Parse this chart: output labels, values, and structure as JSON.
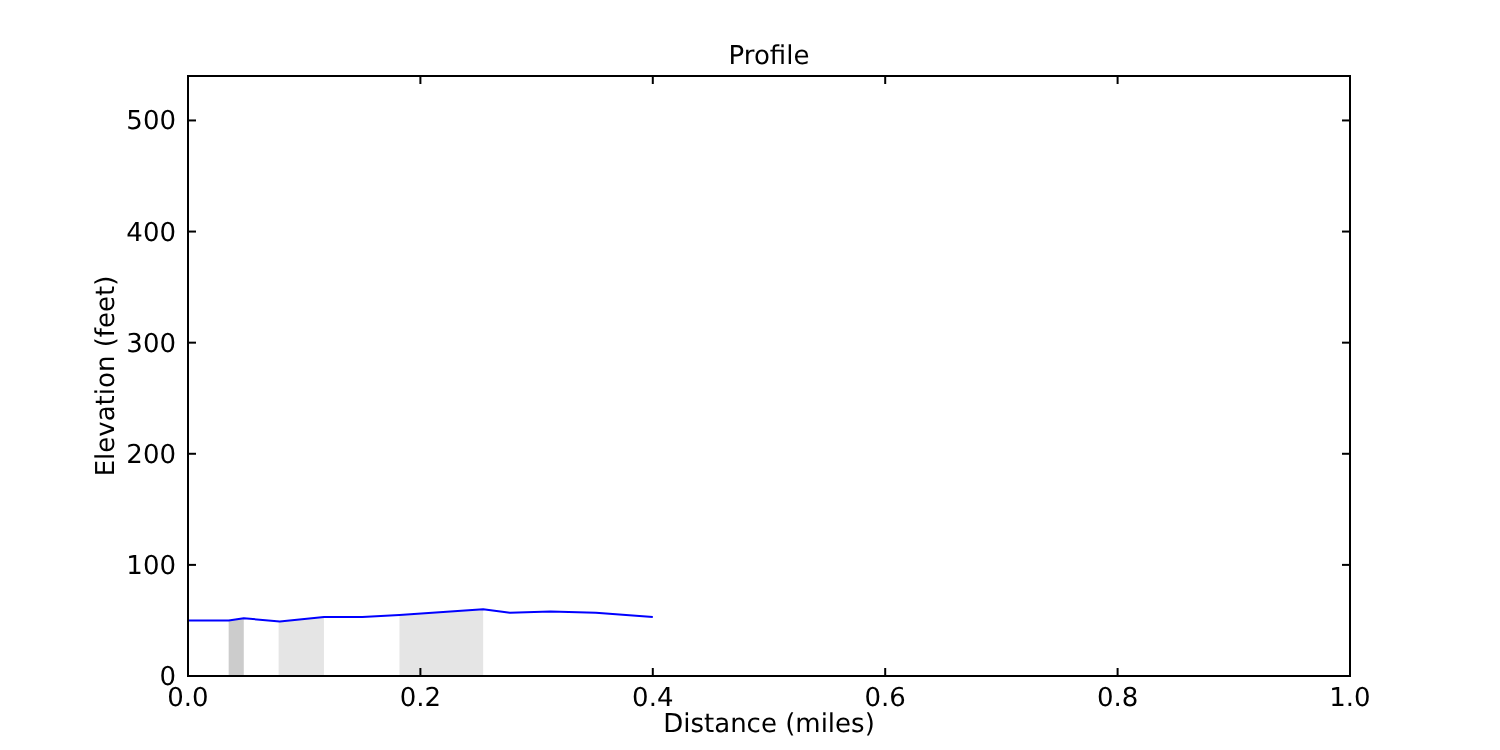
{
  "chart_data": {
    "type": "line",
    "title": "Profile",
    "xlabel": "Distance (miles)",
    "ylabel": "Elevation (feet)",
    "xlim": [
      0,
      1
    ],
    "xticks": [
      {
        "value": 0,
        "label": "0.0"
      },
      {
        "value": 0.2,
        "label": "0.2"
      },
      {
        "value": 0.4,
        "label": "0.4"
      },
      {
        "value": 0.6,
        "label": "0.6"
      },
      {
        "value": 0.8,
        "label": "0.8"
      },
      {
        "value": 1,
        "label": "1.0"
      }
    ],
    "ylim": [
      0,
      540
    ],
    "yticks": [
      0,
      100,
      200,
      300,
      400,
      500
    ],
    "series": [
      {
        "type": "area",
        "color": "#cccccc",
        "x": [
          0.035,
          0.048
        ],
        "values": [
          50,
          52
        ]
      },
      {
        "type": "area",
        "color": "#e5e5e5",
        "x": [
          0.078,
          0.117
        ],
        "values": [
          49,
          53
        ]
      },
      {
        "type": "area",
        "color": "#e5e5e5",
        "x": [
          0.182,
          0.254
        ],
        "values": [
          55,
          60
        ]
      },
      {
        "color": "#0000ff",
        "x": [
          0,
          0.035,
          0.048,
          0.079,
          0.117,
          0.15,
          0.182,
          0.254,
          0.277,
          0.312,
          0.351,
          0.4
        ],
        "values": [
          50,
          50,
          52,
          49,
          53,
          53,
          55,
          60,
          57,
          58,
          57,
          53
        ]
      }
    ],
    "grid": false
  }
}
